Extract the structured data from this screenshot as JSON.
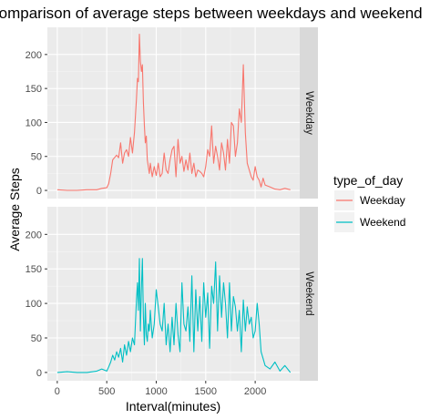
{
  "chart_data": {
    "type": "line",
    "title": "Comparison of average steps between weekdays and weekend",
    "xlabel": "Interval(minutes)",
    "ylabel": "Average Steps",
    "xlim": [
      -100,
      2450
    ],
    "ylim": [
      -12,
      240
    ],
    "x_ticks": [
      0,
      500,
      1000,
      1500,
      2000
    ],
    "y_ticks": [
      0,
      50,
      100,
      150,
      200
    ],
    "grid": true,
    "legend": {
      "title": "type_of_day",
      "position": "right"
    },
    "colors": {
      "Weekday": "#F8766D",
      "Weekend": "#00BFC4"
    },
    "series": [
      {
        "name": "Weekday",
        "x": [
          0,
          100,
          200,
          300,
          400,
          450,
          500,
          520,
          540,
          560,
          600,
          620,
          640,
          660,
          680,
          700,
          720,
          740,
          760,
          780,
          800,
          810,
          820,
          830,
          840,
          850,
          860,
          870,
          880,
          890,
          900,
          910,
          920,
          930,
          940,
          960,
          980,
          1000,
          1020,
          1040,
          1060,
          1080,
          1100,
          1120,
          1140,
          1160,
          1180,
          1200,
          1220,
          1240,
          1260,
          1280,
          1300,
          1320,
          1340,
          1360,
          1380,
          1400,
          1420,
          1440,
          1460,
          1480,
          1500,
          1520,
          1540,
          1560,
          1580,
          1600,
          1620,
          1640,
          1660,
          1680,
          1700,
          1720,
          1740,
          1760,
          1780,
          1800,
          1820,
          1840,
          1860,
          1880,
          1900,
          1920,
          1940,
          1960,
          1980,
          2000,
          2020,
          2040,
          2060,
          2080,
          2100,
          2150,
          2200,
          2250,
          2300,
          2355
        ],
        "values": [
          1,
          0,
          0,
          1,
          1,
          3,
          4,
          10,
          25,
          45,
          52,
          48,
          70,
          40,
          55,
          60,
          50,
          78,
          55,
          85,
          135,
          165,
          160,
          230,
          190,
          175,
          185,
          130,
          95,
          70,
          80,
          45,
          35,
          25,
          40,
          20,
          35,
          22,
          40,
          20,
          25,
          55,
          30,
          25,
          45,
          60,
          65,
          20,
          75,
          40,
          50,
          28,
          45,
          30,
          55,
          25,
          40,
          20,
          30,
          28,
          25,
          20,
          35,
          60,
          50,
          95,
          40,
          65,
          50,
          30,
          70,
          55,
          30,
          75,
          40,
          100,
          95,
          50,
          70,
          120,
          100,
          185,
          85,
          40,
          30,
          20,
          15,
          35,
          20,
          15,
          5,
          18,
          8,
          5,
          2,
          1,
          3,
          1
        ]
      },
      {
        "name": "Weekend",
        "x": [
          0,
          100,
          200,
          300,
          400,
          450,
          500,
          520,
          540,
          560,
          580,
          600,
          620,
          640,
          660,
          680,
          700,
          720,
          740,
          760,
          780,
          800,
          810,
          820,
          830,
          840,
          850,
          860,
          870,
          880,
          890,
          900,
          910,
          920,
          930,
          940,
          960,
          980,
          1000,
          1020,
          1040,
          1060,
          1080,
          1100,
          1120,
          1140,
          1160,
          1180,
          1200,
          1220,
          1240,
          1260,
          1280,
          1300,
          1320,
          1340,
          1360,
          1380,
          1400,
          1420,
          1440,
          1460,
          1480,
          1500,
          1520,
          1540,
          1560,
          1580,
          1600,
          1620,
          1640,
          1660,
          1680,
          1700,
          1720,
          1740,
          1760,
          1780,
          1800,
          1820,
          1840,
          1860,
          1880,
          1900,
          1920,
          1940,
          1960,
          1980,
          2000,
          2020,
          2040,
          2060,
          2080,
          2100,
          2150,
          2200,
          2250,
          2300,
          2355
        ],
        "values": [
          0,
          1,
          0,
          0,
          2,
          5,
          2,
          8,
          15,
          25,
          18,
          30,
          22,
          35,
          15,
          40,
          25,
          45,
          30,
          50,
          40,
          105,
          130,
          90,
          165,
          60,
          120,
          165,
          80,
          40,
          100,
          55,
          45,
          70,
          60,
          90,
          50,
          70,
          120,
          95,
          70,
          60,
          100,
          40,
          70,
          30,
          80,
          40,
          100,
          55,
          30,
          130,
          70,
          60,
          95,
          45,
          140,
          30,
          120,
          60,
          110,
          45,
          130,
          80,
          115,
          35,
          125,
          100,
          160,
          60,
          140,
          80,
          130,
          100,
          50,
          130,
          60,
          110,
          95,
          60,
          90,
          30,
          105,
          60,
          95,
          70,
          80,
          50,
          60,
          100,
          70,
          30,
          20,
          10,
          5,
          15,
          2,
          10,
          0
        ]
      }
    ]
  }
}
